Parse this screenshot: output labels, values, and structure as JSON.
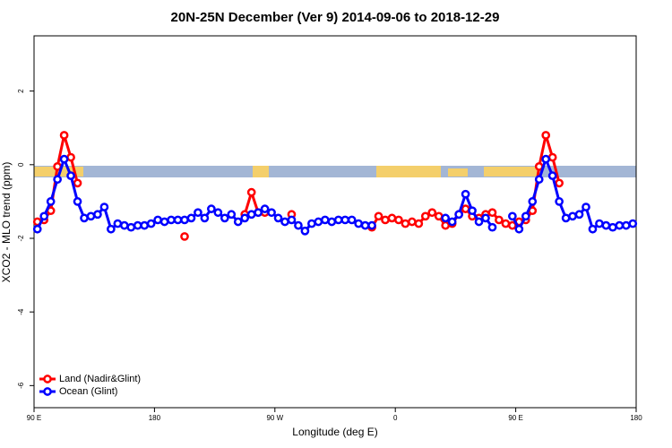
{
  "chart_data": {
    "type": "line",
    "title": "20N-25N December (Ver 9)   2014-09-06 to 2018-12-29",
    "x_label": "Longitude (deg E)",
    "y_label": "XCO2 - MLO trend (ppm)",
    "xlim": [
      90,
      540
    ],
    "ylim": [
      -6.6,
      3.5
    ],
    "xticks": [
      {
        "value": 90,
        "label": "90 E"
      },
      180,
      {
        "value": 270,
        "label": "90 W"
      },
      {
        "value": 360,
        "label": "0"
      },
      {
        "value": 450,
        "label": "90 E"
      },
      {
        "value": 540,
        "label": "180"
      }
    ],
    "yticks": [
      -6,
      -4,
      -2,
      0,
      2
    ],
    "legend": "bottom-left",
    "x": [
      92.5,
      97.5,
      102.5,
      107.5,
      112.5,
      117.5,
      122.5,
      127.5,
      132.5,
      137.5,
      142.5,
      147.5,
      152.5,
      157.5,
      162.5,
      167.5,
      172.5,
      177.5,
      182.5,
      187.5,
      192.5,
      197.5,
      202.5,
      207.5,
      212.5,
      217.5,
      222.5,
      227.5,
      232.5,
      237.5,
      242.5,
      247.5,
      252.5,
      257.5,
      262.5,
      267.5,
      272.5,
      277.5,
      282.5,
      287.5,
      292.5,
      297.5,
      302.5,
      307.5,
      312.5,
      317.5,
      322.5,
      327.5,
      332.5,
      337.5,
      342.5,
      347.5,
      352.5,
      357.5,
      362.5,
      367.5,
      372.5,
      377.5,
      382.5,
      387.5,
      392.5,
      397.5,
      402.5,
      407.5,
      412.5,
      417.5,
      422.5,
      427.5,
      432.5,
      437.5,
      442.5,
      447.5,
      452.5,
      457.5,
      462.5,
      467.5,
      472.5,
      477.5,
      482.5,
      487.5,
      492.5,
      497.5,
      502.5,
      507.5,
      512.5,
      517.5,
      522.5,
      527.5,
      532.5,
      537.5
    ],
    "series": [
      {
        "name": "Land (Nadir&Glint)",
        "color": "#ff0000",
        "values": [
          -1.55,
          -1.5,
          -1.25,
          -0.05,
          0.8,
          0.2,
          -0.5,
          null,
          null,
          null,
          null,
          null,
          null,
          null,
          null,
          null,
          null,
          null,
          null,
          null,
          null,
          null,
          -1.95,
          null,
          null,
          null,
          null,
          null,
          null,
          null,
          null,
          -1.35,
          -0.75,
          -1.3,
          -1.3,
          null,
          null,
          null,
          -1.35,
          null,
          null,
          null,
          null,
          null,
          null,
          null,
          null,
          null,
          null,
          null,
          -1.7,
          -1.4,
          -1.5,
          -1.45,
          -1.5,
          -1.6,
          -1.55,
          -1.6,
          -1.4,
          -1.3,
          -1.4,
          -1.65,
          -1.6,
          -1.35,
          -1.2,
          -1.4,
          -1.45,
          -1.35,
          -1.3,
          -1.5,
          -1.6,
          -1.65,
          -1.55,
          -1.5,
          -1.25,
          -0.05,
          0.8,
          0.2,
          -0.5,
          null,
          null,
          null,
          null,
          null,
          null,
          null,
          null,
          null,
          null,
          null
        ]
      },
      {
        "name": "Ocean (Glint)",
        "color": "#0000ff",
        "values": [
          -1.75,
          -1.4,
          -1.0,
          -0.4,
          0.15,
          -0.3,
          -1.0,
          -1.45,
          -1.4,
          -1.35,
          -1.15,
          -1.75,
          -1.6,
          -1.65,
          -1.7,
          -1.65,
          -1.65,
          -1.6,
          -1.5,
          -1.55,
          -1.5,
          -1.5,
          -1.5,
          -1.45,
          -1.3,
          -1.45,
          -1.2,
          -1.3,
          -1.45,
          -1.35,
          -1.55,
          -1.45,
          -1.35,
          -1.3,
          -1.2,
          -1.3,
          -1.45,
          -1.55,
          -1.5,
          -1.65,
          -1.8,
          -1.6,
          -1.55,
          -1.5,
          -1.55,
          -1.5,
          -1.5,
          -1.5,
          -1.6,
          -1.65,
          -1.65,
          null,
          null,
          null,
          null,
          null,
          null,
          null,
          null,
          null,
          null,
          -1.45,
          -1.55,
          -1.35,
          -0.8,
          -1.25,
          -1.55,
          -1.45,
          -1.7,
          null,
          null,
          -1.4,
          -1.75,
          -1.4,
          -1.0,
          -0.4,
          0.15,
          -0.3,
          -1.0,
          -1.45,
          -1.4,
          -1.35,
          -1.15,
          -1.75,
          -1.6,
          -1.65,
          -1.7,
          -1.65,
          -1.65,
          -1.6
        ]
      }
    ]
  }
}
